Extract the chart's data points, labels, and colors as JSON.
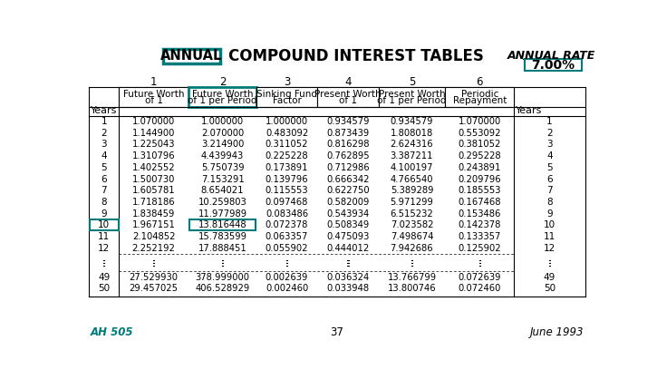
{
  "title_left": "ANNUAL",
  "title_center": "COMPOUND INTEREST TABLES",
  "title_right_line1": "ANNUAL RATE",
  "title_right_line2": "7.00%",
  "col_numbers": [
    "1",
    "2",
    "3",
    "4",
    "5",
    "6"
  ],
  "col_headers": [
    [
      "Future Worth",
      "of 1"
    ],
    [
      "Future Worth",
      "of 1 per Period"
    ],
    [
      "Sinking Fund",
      "Factor"
    ],
    [
      "Present Worth",
      "of 1"
    ],
    [
      "Present Worth",
      "of 1 per Period"
    ],
    [
      "Periodic",
      "Repayment"
    ]
  ],
  "years_label": "Years",
  "rows": [
    [
      1,
      1.07,
      1.0,
      1.0,
      0.934579,
      0.934579,
      1.07
    ],
    [
      2,
      1.1449,
      2.07,
      0.483092,
      0.873439,
      1.808018,
      0.553092
    ],
    [
      3,
      1.225043,
      3.2149,
      0.311052,
      0.816298,
      2.624316,
      0.381052
    ],
    [
      4,
      1.310796,
      4.439943,
      0.225228,
      0.762895,
      3.387211,
      0.295228
    ],
    [
      5,
      1.402552,
      5.750739,
      0.173891,
      0.712986,
      4.100197,
      0.243891
    ],
    [
      6,
      1.50073,
      7.153291,
      0.139796,
      0.666342,
      4.76654,
      0.209796
    ],
    [
      7,
      1.605781,
      8.654021,
      0.115553,
      0.62275,
      5.389289,
      0.185553
    ],
    [
      8,
      1.718186,
      10.259803,
      0.097468,
      0.582009,
      5.971299,
      0.167468
    ],
    [
      9,
      1.838459,
      11.977989,
      0.083486,
      0.543934,
      6.515232,
      0.153486
    ],
    [
      10,
      1.967151,
      13.816448,
      0.072378,
      0.508349,
      7.023582,
      0.142378
    ],
    [
      11,
      2.104852,
      15.783599,
      0.063357,
      0.475093,
      7.498674,
      0.133357
    ],
    [
      12,
      2.252192,
      17.888451,
      0.055902,
      0.444012,
      7.942686,
      0.125902
    ],
    [
      49,
      27.52993,
      378.999,
      0.002639,
      0.036324,
      13.766799,
      0.072639
    ],
    [
      50,
      29.457025,
      406.528929,
      0.00246,
      0.033948,
      13.800746,
      0.07246
    ]
  ],
  "highlight_row": 10,
  "highlight_col": 2,
  "teal_color": "#007B7B",
  "footer_left": "AH 505",
  "footer_center": "37",
  "footer_right": "June 1993",
  "bg_color": "#ffffff"
}
